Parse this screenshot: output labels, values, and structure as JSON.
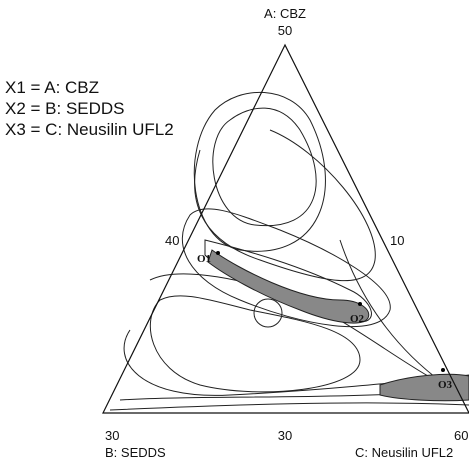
{
  "vertices": {
    "top": {
      "label": "A: CBZ",
      "value": 50
    },
    "left": {
      "label": "B: SEDDS",
      "value": 30
    },
    "right": {
      "label": "C: Neusilin UFL2",
      "value": 60
    }
  },
  "edge_ticks": {
    "left": 40,
    "right": 10,
    "bottom": 30
  },
  "legend": [
    "X1 = A: CBZ",
    "X2 = B: SEDDS",
    "X3 = C: Neusilin UFL2"
  ],
  "points": [
    "O1",
    "O2",
    "O3"
  ]
}
